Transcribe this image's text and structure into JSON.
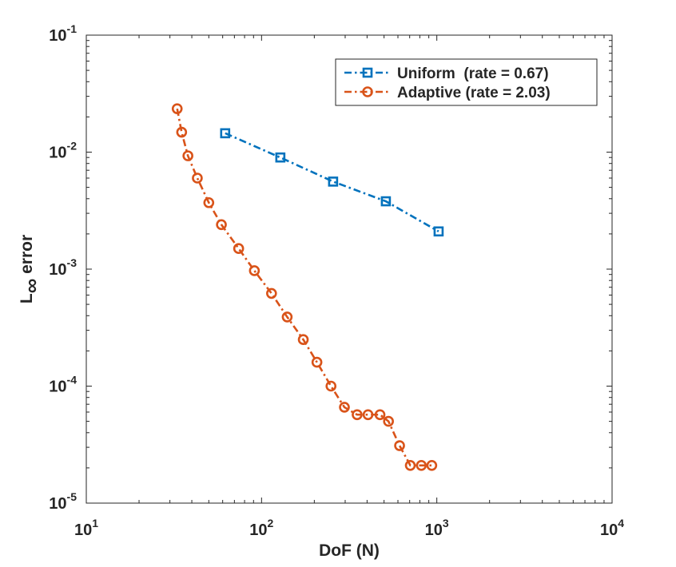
{
  "chart_data": {
    "type": "line",
    "xscale": "log",
    "yscale": "log",
    "xlabel": "DoF (N)",
    "ylabel": {
      "base": "L",
      "subscript": "∞",
      "suffix": "error"
    },
    "xlim": [
      10,
      10000
    ],
    "ylim": [
      1e-05,
      0.1
    ],
    "x_ticks": [
      {
        "base": "10",
        "exp": "1"
      },
      {
        "base": "10",
        "exp": "2"
      },
      {
        "base": "10",
        "exp": "3"
      },
      {
        "base": "10",
        "exp": "4"
      }
    ],
    "y_ticks": [
      {
        "base": "10",
        "exp": "-5"
      },
      {
        "base": "10",
        "exp": "-4"
      },
      {
        "base": "10",
        "exp": "-3"
      },
      {
        "base": "10",
        "exp": "-2"
      },
      {
        "base": "10",
        "exp": "-1"
      }
    ],
    "legend_position": "top-right",
    "series": [
      {
        "name": "Uniform  (rate = 0.67)",
        "color": "#0072BD",
        "marker": "square",
        "linestyle": "dashdot",
        "x": [
          62,
          128,
          256,
          512,
          1024
        ],
        "y": [
          0.0145,
          0.009,
          0.0056,
          0.0038,
          0.0021
        ]
      },
      {
        "name": "Adaptive (rate = 2.03)",
        "color": "#D95319",
        "marker": "circle",
        "linestyle": "dashdot",
        "x": [
          33,
          35,
          38,
          43,
          50,
          59,
          74,
          91,
          114,
          140,
          173,
          207,
          249,
          297,
          351,
          405,
          474,
          530,
          613,
          706,
          816,
          936
        ],
        "y": [
          0.0235,
          0.0148,
          0.0093,
          0.006,
          0.0037,
          0.0024,
          0.0015,
          0.00097,
          0.00062,
          0.00039,
          0.00025,
          0.00016,
          0.0001,
          6.6e-05,
          5.7e-05,
          5.7e-05,
          5.7e-05,
          5e-05,
          3.1e-05,
          2.1e-05,
          2.1e-05,
          2.1e-05
        ]
      }
    ]
  }
}
